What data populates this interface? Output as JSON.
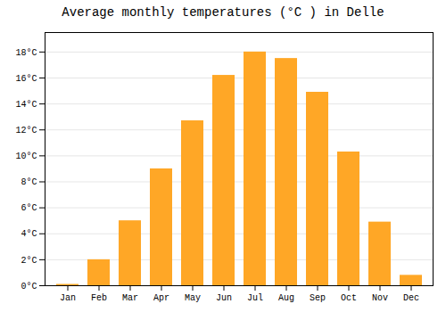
{
  "chart_data": {
    "type": "bar",
    "title": "Average monthly temperatures (°C ) in Delle",
    "categories": [
      "Jan",
      "Feb",
      "Mar",
      "Apr",
      "May",
      "Jun",
      "Jul",
      "Aug",
      "Sep",
      "Oct",
      "Nov",
      "Dec"
    ],
    "values": [
      0.1,
      2.0,
      5.0,
      9.0,
      12.7,
      16.2,
      18.0,
      17.5,
      14.9,
      10.3,
      4.9,
      0.8
    ],
    "color": "#FFA726",
    "ylim": [
      0,
      19.5
    ],
    "yticks": [
      {
        "value": 0,
        "label": "0°C"
      },
      {
        "value": 2,
        "label": "2°C"
      },
      {
        "value": 4,
        "label": "4°C"
      },
      {
        "value": 6,
        "label": "6°C"
      },
      {
        "value": 8,
        "label": "8°C"
      },
      {
        "value": 10,
        "label": "10°C"
      },
      {
        "value": 12,
        "label": "12°C"
      },
      {
        "value": 14,
        "label": "14°C"
      },
      {
        "value": 16,
        "label": "16°C"
      },
      {
        "value": 18,
        "label": "18°C"
      }
    ],
    "grid": true
  }
}
